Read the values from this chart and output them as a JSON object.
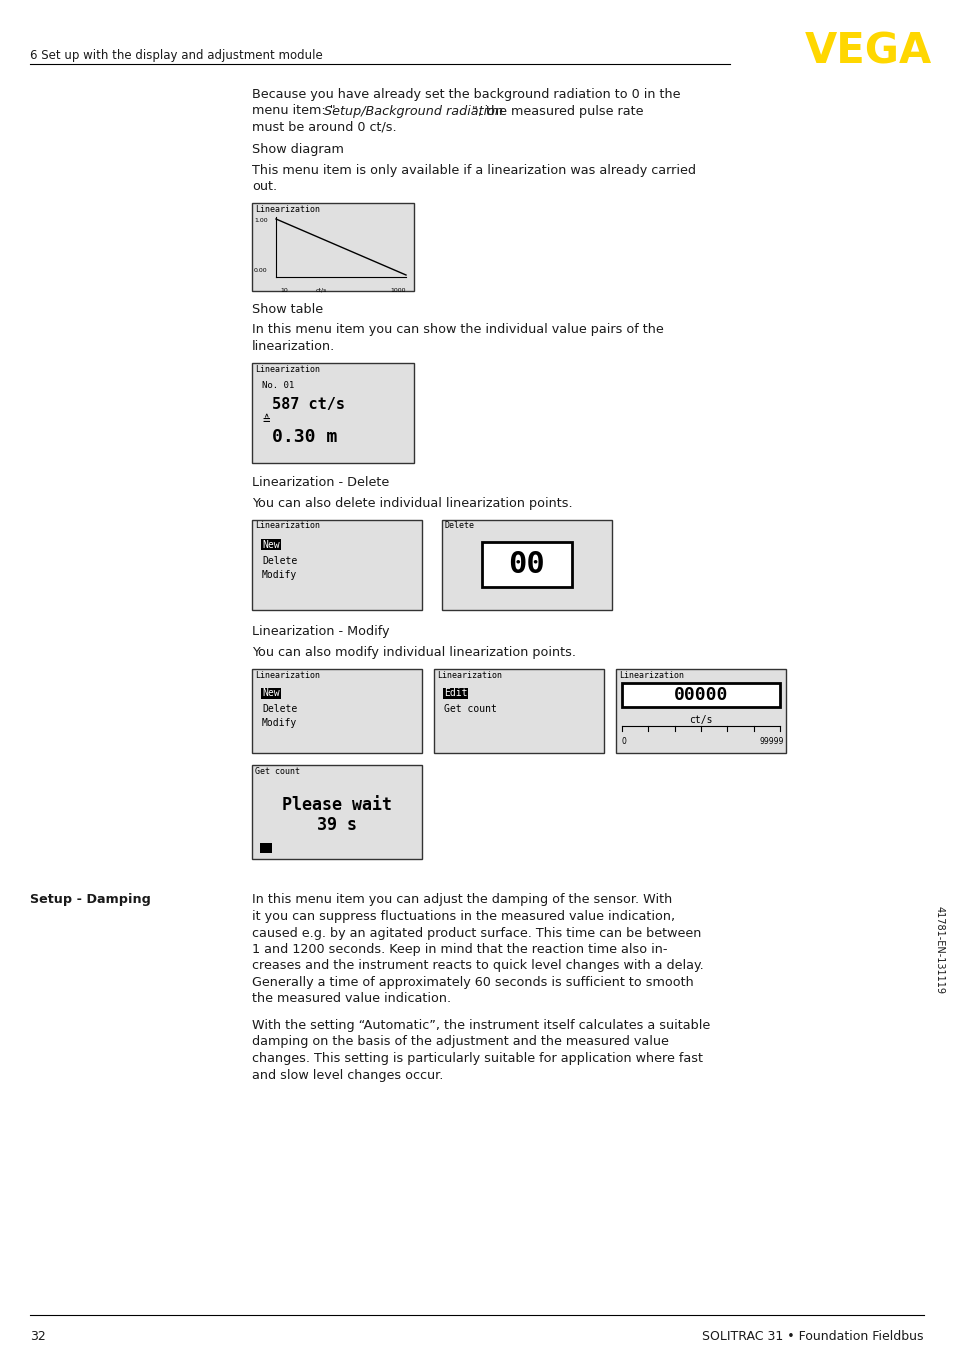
{
  "page_number": "32",
  "footer_text": "SOLITRAC 31 • Foundation Fieldbus",
  "header_chapter": "6 Set up with the display and adjustment module",
  "vega_color": "#FFD700",
  "background": "#ffffff",
  "text_color": "#1a1a1a",
  "sidebar_label": "Setup - Damping",
  "rotated_text": "41781-EN-131119",
  "para1_line1": "Because you have already set the background radiation to 0 in the",
  "para1_line2a": "menu item: \"",
  "para1_line2b": "Setup/Background radiation",
  "para1_line2c": "\", the measured pulse rate",
  "para1_line3": "must be around 0 ct/s.",
  "heading_showdiag": "Show diagram",
  "para2_line1": "This menu item is only available if a linearization was already carried",
  "para2_line2": "out.",
  "heading_showtable": "Show table",
  "para3_line1": "In this menu item you can show the individual value pairs of the",
  "para3_line2": "linearization.",
  "heading_delete": "Linearization - Delete",
  "para4": "You can also delete individual linearization points.",
  "heading_modify": "Linearization - Modify",
  "para5": "You can also modify individual linearization points.",
  "damp_lines1": [
    "In this menu item you can adjust the damping of the sensor. With",
    "it you can suppress fluctuations in the measured value indication,",
    "caused e.g. by an agitated product surface. This time can be between",
    "1 and 1200 seconds. Keep in mind that the reaction time also in-",
    "creases and the instrument reacts to quick level changes with a delay.",
    "Generally a time of approximately 60 seconds is sufficient to smooth",
    "the measured value indication."
  ],
  "damp_lines2": [
    "With the setting “Automatic”, the instrument itself calculates a suitable",
    "damping on the basis of the adjustment and the measured value",
    "changes. This setting is particularly suitable for application where fast",
    "and slow level changes occur."
  ]
}
